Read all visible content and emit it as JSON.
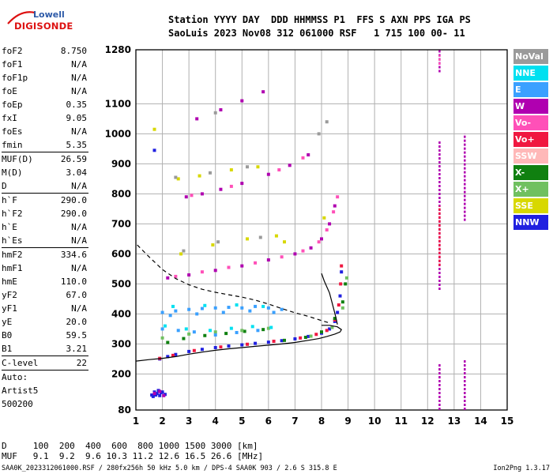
{
  "logo": {
    "line1": "Lowell",
    "line2": "DIGISONDE"
  },
  "header": {
    "line1": "Station YYYY DAY  DDD HHMMSS P1  FFS S AXN PPS IGA PS",
    "line2": "SaoLuis 2023 Nov08 312 061000 RSF   1 715 100 00- 11"
  },
  "params": [
    {
      "label": "foF2",
      "value": "8.750"
    },
    {
      "label": "foF1",
      "value": "N/A"
    },
    {
      "label": "foF1p",
      "value": "N/A"
    },
    {
      "label": "foE",
      "value": "N/A"
    },
    {
      "label": "foEp",
      "value": "0.35"
    },
    {
      "label": "fxI",
      "value": "9.05"
    },
    {
      "label": "foEs",
      "value": "N/A"
    },
    {
      "label": "fmin",
      "value": "5.35"
    },
    {
      "sep": true
    },
    {
      "label": "MUF(D)",
      "value": "26.59"
    },
    {
      "label": "M(D)",
      "value": "3.04"
    },
    {
      "label": "D",
      "value": "N/A"
    },
    {
      "sep": true
    },
    {
      "label": "h`F",
      "value": "290.0"
    },
    {
      "label": "h`F2",
      "value": "290.0"
    },
    {
      "label": "h`E",
      "value": "N/A"
    },
    {
      "label": "h`Es",
      "value": "N/A"
    },
    {
      "sep": true
    },
    {
      "label": "hmF2",
      "value": "334.6"
    },
    {
      "label": "hmF1",
      "value": "N/A"
    },
    {
      "label": "hmE",
      "value": "110.0"
    },
    {
      "label": "yF2",
      "value": "67.0"
    },
    {
      "label": "yF1",
      "value": "N/A"
    },
    {
      "label": "yE",
      "value": "20.0"
    },
    {
      "label": "B0",
      "value": "59.5"
    },
    {
      "label": "B1",
      "value": "3.21"
    },
    {
      "sep": true
    },
    {
      "label": "C-level",
      "value": "22"
    },
    {
      "sep": true
    },
    {
      "text": "Auto:"
    },
    {
      "text": "Artist5"
    },
    {
      "text": "500200"
    }
  ],
  "legend": [
    {
      "label": "NoVal",
      "color": "#9a9a9a"
    },
    {
      "label": "NNE",
      "color": "#00e0f0"
    },
    {
      "label": "E",
      "color": "#3aa0ff"
    },
    {
      "label": "W",
      "color": "#b000b0"
    },
    {
      "label": "Vo-",
      "color": "#ff50b8"
    },
    {
      "label": "Vo+",
      "color": "#f01840"
    },
    {
      "label": "SSW",
      "color": "#ffb8b8"
    },
    {
      "label": "X-",
      "color": "#108010"
    },
    {
      "label": "X+",
      "color": "#70c060"
    },
    {
      "label": "SSE",
      "color": "#d8d800"
    },
    {
      "label": "NNW",
      "color": "#2020e0"
    }
  ],
  "chart_data": {
    "type": "scatter",
    "title": "",
    "xlim": [
      1,
      15
    ],
    "ylim": [
      80,
      1280
    ],
    "xticks": [
      "1",
      "2",
      "3",
      "4",
      "5",
      "6",
      "7",
      "8",
      "9",
      "10",
      "11",
      "12",
      "13",
      "14",
      "15"
    ],
    "yticks": [
      "80",
      "200",
      "300",
      "400",
      "500",
      "600",
      "700",
      "800",
      "900",
      "1000",
      "1100",
      "1280"
    ],
    "grid": true,
    "series": [
      {
        "kind": "dots",
        "color": "#2020e0",
        "points": [
          [
            1.9,
            250
          ],
          [
            2.2,
            258
          ],
          [
            2.5,
            265
          ],
          [
            3.0,
            275
          ],
          [
            3.5,
            282
          ],
          [
            4.0,
            288
          ],
          [
            4.5,
            293
          ],
          [
            5.0,
            297
          ],
          [
            5.5,
            302
          ],
          [
            6.0,
            306
          ],
          [
            6.5,
            311
          ],
          [
            7.0,
            317
          ],
          [
            7.5,
            325
          ],
          [
            8.0,
            336
          ],
          [
            8.3,
            350
          ],
          [
            8.5,
            375
          ],
          [
            8.6,
            405
          ],
          [
            8.7,
            460
          ],
          [
            8.75,
            540
          ]
        ]
      },
      {
        "kind": "dots",
        "color": "#f01840",
        "points": [
          [
            1.9,
            252
          ],
          [
            2.4,
            262
          ],
          [
            3.2,
            278
          ],
          [
            4.2,
            290
          ],
          [
            5.2,
            299
          ],
          [
            6.2,
            309
          ],
          [
            7.2,
            320
          ],
          [
            7.8,
            332
          ],
          [
            8.2,
            345
          ],
          [
            8.5,
            380
          ],
          [
            8.65,
            430
          ],
          [
            8.72,
            500
          ],
          [
            8.75,
            560
          ]
        ]
      },
      {
        "kind": "dots",
        "color": "#108010",
        "points": [
          [
            2.2,
            305
          ],
          [
            2.8,
            318
          ],
          [
            3.6,
            328
          ],
          [
            4.4,
            335
          ],
          [
            5.1,
            342
          ],
          [
            5.8,
            348
          ],
          [
            6.6,
            312
          ],
          [
            7.4,
            322
          ],
          [
            8.0,
            340
          ],
          [
            8.5,
            385
          ],
          [
            8.8,
            440
          ],
          [
            8.9,
            500
          ]
        ]
      },
      {
        "kind": "dots",
        "color": "#70c060",
        "points": [
          [
            2.0,
            320
          ],
          [
            3.0,
            333
          ],
          [
            4.0,
            340
          ],
          [
            5.0,
            345
          ],
          [
            6.0,
            352
          ],
          [
            7.6,
            326
          ],
          [
            8.4,
            355
          ],
          [
            8.8,
            420
          ],
          [
            8.95,
            520
          ]
        ]
      },
      {
        "kind": "dots",
        "color": "#3aa0ff",
        "points": [
          [
            2.0,
            405
          ],
          [
            2.5,
            410
          ],
          [
            3.0,
            415
          ],
          [
            3.5,
            418
          ],
          [
            4.0,
            420
          ],
          [
            4.5,
            422
          ],
          [
            5.0,
            420
          ],
          [
            5.5,
            425
          ],
          [
            6.0,
            420
          ],
          [
            6.5,
            415
          ],
          [
            2.3,
            395
          ],
          [
            3.3,
            400
          ],
          [
            4.3,
            405
          ],
          [
            5.3,
            410
          ],
          [
            6.2,
            405
          ],
          [
            2.0,
            350
          ],
          [
            2.6,
            345
          ],
          [
            3.2,
            340
          ],
          [
            4.0,
            330
          ],
          [
            4.8,
            338
          ],
          [
            5.6,
            345
          ]
        ]
      },
      {
        "kind": "dots",
        "color": "#00e0f0",
        "points": [
          [
            2.1,
            360
          ],
          [
            2.9,
            350
          ],
          [
            3.8,
            345
          ],
          [
            4.6,
            352
          ],
          [
            5.4,
            358
          ],
          [
            6.1,
            355
          ],
          [
            2.4,
            425
          ],
          [
            3.6,
            428
          ],
          [
            4.8,
            430
          ],
          [
            5.8,
            425
          ]
        ]
      },
      {
        "kind": "dots",
        "color": "#b000b0",
        "points": [
          [
            2.2,
            520
          ],
          [
            3.0,
            530
          ],
          [
            4.0,
            545
          ],
          [
            5.0,
            560
          ],
          [
            6.0,
            580
          ],
          [
            7.0,
            600
          ],
          [
            7.6,
            620
          ],
          [
            8.0,
            650
          ],
          [
            8.3,
            700
          ],
          [
            8.5,
            760
          ],
          [
            2.9,
            790
          ],
          [
            3.5,
            800
          ],
          [
            4.2,
            815
          ],
          [
            5.0,
            835
          ],
          [
            6.0,
            865
          ],
          [
            6.8,
            895
          ],
          [
            7.5,
            930
          ],
          [
            3.3,
            1050
          ],
          [
            4.2,
            1080
          ],
          [
            5.0,
            1110
          ],
          [
            5.8,
            1140
          ]
        ]
      },
      {
        "kind": "dots",
        "color": "#ff50b8",
        "points": [
          [
            2.5,
            525
          ],
          [
            3.5,
            540
          ],
          [
            4.5,
            555
          ],
          [
            5.5,
            570
          ],
          [
            6.5,
            590
          ],
          [
            7.3,
            610
          ],
          [
            7.9,
            640
          ],
          [
            8.2,
            680
          ],
          [
            8.45,
            740
          ],
          [
            8.6,
            790
          ],
          [
            3.1,
            795
          ],
          [
            4.6,
            825
          ],
          [
            6.4,
            880
          ],
          [
            7.3,
            920
          ]
        ]
      },
      {
        "kind": "dots",
        "color": "#d8d800",
        "points": [
          [
            2.7,
            600
          ],
          [
            3.9,
            630
          ],
          [
            5.2,
            650
          ],
          [
            6.3,
            660
          ],
          [
            2.6,
            850
          ],
          [
            3.4,
            860
          ],
          [
            4.6,
            880
          ],
          [
            5.6,
            890
          ],
          [
            6.6,
            640
          ],
          [
            8.1,
            720
          ],
          [
            1.7,
            1015
          ]
        ]
      },
      {
        "kind": "dots",
        "color": "#9a9a9a",
        "points": [
          [
            2.8,
            610
          ],
          [
            4.1,
            640
          ],
          [
            5.7,
            655
          ],
          [
            2.5,
            855
          ],
          [
            3.8,
            870
          ],
          [
            5.2,
            890
          ],
          [
            4.0,
            1070
          ],
          [
            7.9,
            1000
          ],
          [
            8.2,
            1040
          ]
        ]
      },
      {
        "kind": "dots",
        "color": "#2020e0",
        "points": [
          [
            1.6,
            130
          ],
          [
            1.7,
            140
          ],
          [
            1.8,
            135
          ],
          [
            1.9,
            128
          ],
          [
            2.0,
            140
          ],
          [
            2.1,
            132
          ],
          [
            1.65,
            125
          ],
          [
            1.85,
            145
          ],
          [
            1.95,
            138
          ],
          [
            1.75,
            130
          ],
          [
            1.7,
            945
          ]
        ]
      },
      {
        "kind": "dots",
        "color": "#b000b0",
        "points": [
          [
            1.7,
            135
          ],
          [
            1.9,
            142
          ],
          [
            2.05,
            128
          ]
        ]
      },
      {
        "kind": "vline",
        "color": "#b000b0",
        "x": 12.45,
        "from": 480,
        "to": 980
      },
      {
        "kind": "vline",
        "color": "#f01840",
        "x": 12.45,
        "from": 560,
        "to": 760
      },
      {
        "kind": "vline",
        "color": "#b000b0",
        "x": 12.45,
        "from": 1205,
        "to": 1280
      },
      {
        "kind": "vline",
        "color": "#ff50b8",
        "x": 12.45,
        "from": 1230,
        "to": 1262
      },
      {
        "kind": "vline",
        "color": "#b000b0",
        "x": 12.45,
        "from": 80,
        "to": 235
      },
      {
        "kind": "vline",
        "color": "#b000b0",
        "x": 13.4,
        "from": 710,
        "to": 1000
      },
      {
        "kind": "vline",
        "color": "#b000b0",
        "x": 13.4,
        "from": 80,
        "to": 250
      },
      {
        "kind": "curve",
        "color": "#000000",
        "dash": false,
        "points": [
          [
            1.0,
            243
          ],
          [
            1.5,
            248
          ],
          [
            2.0,
            252
          ],
          [
            2.5,
            258
          ],
          [
            3.0,
            266
          ],
          [
            3.5,
            273
          ],
          [
            4.0,
            279
          ],
          [
            4.5,
            284
          ],
          [
            5.0,
            288
          ],
          [
            5.5,
            292
          ],
          [
            6.0,
            296
          ],
          [
            6.5,
            300
          ],
          [
            7.0,
            305
          ],
          [
            7.5,
            312
          ],
          [
            7.9,
            318
          ],
          [
            8.2,
            325
          ],
          [
            8.5,
            333
          ],
          [
            8.7,
            340
          ],
          [
            8.75,
            348
          ],
          [
            8.6,
            357
          ],
          [
            8.3,
            362
          ],
          [
            8.0,
            362
          ]
        ]
      },
      {
        "kind": "curve",
        "color": "#000000",
        "dash": true,
        "points": [
          [
            1.05,
            630
          ],
          [
            1.5,
            590
          ],
          [
            2.0,
            548
          ],
          [
            2.5,
            518
          ],
          [
            3.0,
            497
          ],
          [
            3.5,
            482
          ],
          [
            4.0,
            472
          ],
          [
            4.5,
            464
          ],
          [
            5.0,
            456
          ],
          [
            5.5,
            446
          ],
          [
            6.0,
            433
          ],
          [
            6.5,
            418
          ],
          [
            7.0,
            404
          ],
          [
            7.5,
            392
          ],
          [
            8.0,
            378
          ],
          [
            8.3,
            370
          ]
        ]
      },
      {
        "kind": "curve",
        "color": "#000000",
        "dash": false,
        "points": [
          [
            8.0,
            535
          ],
          [
            8.1,
            510
          ],
          [
            8.3,
            470
          ],
          [
            8.45,
            420
          ],
          [
            8.55,
            385
          ],
          [
            8.6,
            365
          ]
        ]
      }
    ]
  },
  "footer": {
    "d_line": "D     100  200  400  600  800 1000 1500 3000 [km]",
    "muf_line": "MUF   9.1  9.2  9.6 10.3 11.2 12.6 16.5 26.6 [MHz]",
    "file_line": "SAA0K_2023312061000.RSF / 280fx256h 50 kHz 5.0 km / DPS-4 SAA0K 903 / 2.6 S 315.8 E",
    "version": "Ion2Png 1.3.17"
  }
}
